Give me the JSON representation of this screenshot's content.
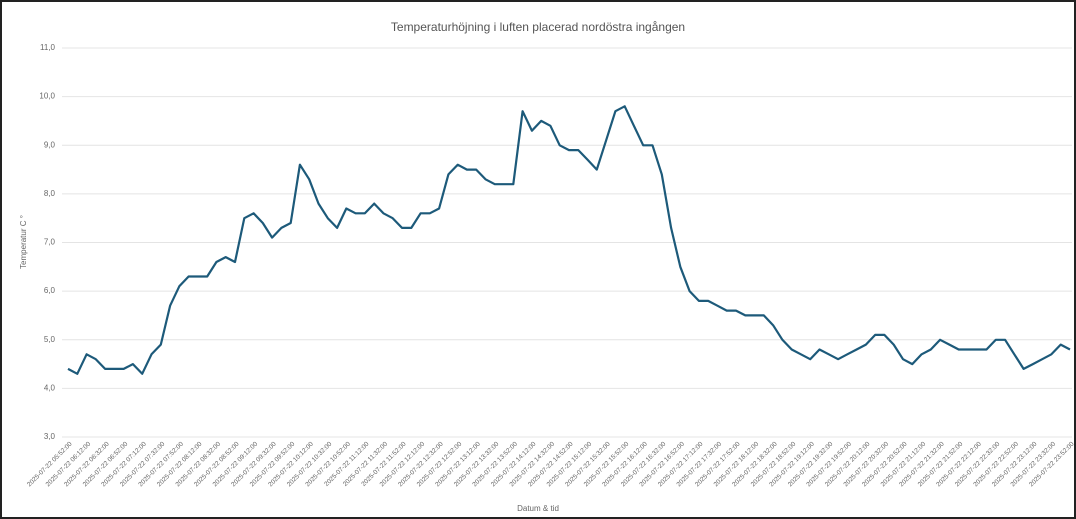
{
  "chart_data": {
    "type": "line",
    "title": "Temperaturhöjning i luften placerad nordöstra ingången",
    "x_label": "Datum & tid",
    "y_label": "Temperatur C °",
    "categories": [
      "2025-07-22 05:52:00",
      null,
      "2025-07-22 06:12:00",
      null,
      "2025-07-22 06:32:00",
      null,
      "2025-07-22 06:52:00",
      null,
      "2025-07-22 07:12:00",
      null,
      "2025-07-22 07:32:00",
      null,
      "2025-07-22 07:52:00",
      null,
      "2025-07-22 08:12:00",
      null,
      "2025-07-22 08:32:00",
      null,
      "2025-07-22 08:52:00",
      null,
      "2025-07-22 09:12:00",
      null,
      "2025-07-22 09:32:00",
      null,
      "2025-07-22 09:52:00",
      null,
      "2025-07-22 10:12:00",
      null,
      "2025-07-22 10:32:00",
      null,
      "2025-07-22 10:52:00",
      null,
      "2025-07-22 11:12:00",
      null,
      "2025-07-22 11:32:00",
      null,
      "2025-07-22 11:52:00",
      null,
      "2025-07-22 12:12:00",
      null,
      "2025-07-22 12:32:00",
      null,
      "2025-07-22 12:52:00",
      null,
      "2025-07-22 13:12:00",
      null,
      "2025-07-22 13:32:00",
      null,
      "2025-07-22 13:52:00",
      null,
      "2025-07-22 14:12:00",
      null,
      "2025-07-22 14:32:00",
      null,
      "2025-07-22 14:52:00",
      null,
      "2025-07-22 15:12:00",
      null,
      "2025-07-22 15:32:00",
      null,
      "2025-07-22 15:52:00",
      null,
      "2025-07-22 16:12:00",
      null,
      "2025-07-22 16:32:00",
      null,
      "2025-07-22 16:52:00",
      null,
      "2025-07-22 17:12:00",
      null,
      "2025-07-22 17:32:00",
      null,
      "2025-07-22 17:52:00",
      null,
      "2025-07-22 18:12:00",
      null,
      "2025-07-22 18:32:00",
      null,
      "2025-07-22 18:52:00",
      null,
      "2025-07-22 19:12:00",
      null,
      "2025-07-22 19:32:00",
      null,
      "2025-07-22 19:52:00",
      null,
      "2025-07-22 20:12:00",
      null,
      "2025-07-22 20:32:00",
      null,
      "2025-07-22 20:52:00",
      null,
      "2025-07-22 21:12:00",
      null,
      "2025-07-22 21:32:00",
      null,
      "2025-07-22 21:52:00",
      null,
      "2025-07-22 22:12:00",
      null,
      "2025-07-22 22:32:00",
      null,
      "2025-07-22 22:52:00",
      null,
      "2025-07-22 23:12:00",
      null,
      "2025-07-22 23:32:00",
      null,
      "2025-07-22 23:52:00"
    ],
    "values": [
      4.4,
      4.3,
      4.7,
      4.6,
      4.4,
      4.4,
      4.4,
      4.5,
      4.3,
      4.7,
      4.9,
      5.7,
      6.1,
      6.3,
      6.3,
      6.3,
      6.6,
      6.7,
      6.6,
      7.5,
      7.6,
      7.4,
      7.1,
      7.3,
      7.4,
      8.6,
      8.3,
      7.8,
      7.5,
      7.3,
      7.7,
      7.6,
      7.6,
      7.8,
      7.6,
      7.5,
      7.3,
      7.3,
      7.6,
      7.6,
      7.7,
      8.4,
      8.6,
      8.5,
      8.5,
      8.3,
      8.2,
      8.2,
      8.2,
      9.7,
      9.3,
      9.5,
      9.4,
      9.0,
      8.9,
      8.9,
      8.7,
      8.5,
      9.1,
      9.7,
      9.8,
      9.4,
      9.0,
      9.0,
      8.4,
      7.3,
      6.5,
      6.0,
      5.8,
      5.8,
      5.7,
      5.6,
      5.6,
      5.5,
      5.5,
      5.5,
      5.3,
      5.0,
      4.8,
      4.7,
      4.6,
      4.8,
      4.7,
      4.6,
      4.7,
      4.8,
      4.9,
      5.1,
      5.1,
      4.9,
      4.6,
      4.5,
      4.7,
      4.8,
      5.0,
      4.9,
      4.8,
      4.8,
      4.8,
      4.8,
      5.0,
      5.0,
      4.7,
      4.4,
      4.5,
      4.6,
      4.7,
      4.9,
      4.8
    ],
    "color": "#1d5a7a",
    "ylim": [
      3,
      11
    ],
    "yticks": [
      {
        "value": 3,
        "label": "3,0"
      },
      {
        "value": 4,
        "label": "4,0"
      },
      {
        "value": 5,
        "label": "5,0"
      },
      {
        "value": 6,
        "label": "6,0"
      },
      {
        "value": 7,
        "label": "7,0"
      },
      {
        "value": 8,
        "label": "8,0"
      },
      {
        "value": 9,
        "label": "9,0"
      },
      {
        "value": 10,
        "label": "10,0"
      },
      {
        "value": 11,
        "label": "11,0"
      }
    ],
    "grid": true
  }
}
